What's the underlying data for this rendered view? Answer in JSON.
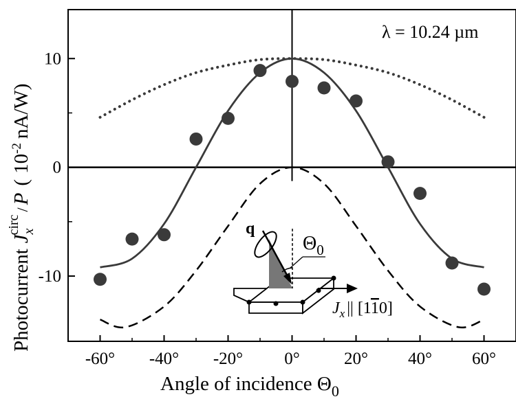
{
  "chart_data": {
    "type": "line",
    "annotation": "λ = 10.24 µm",
    "xlabel": "Angle of incidence Θ0",
    "ylabel": "Photocurrent J_x^circ / P ( 10^-2 nA/W)",
    "ylabel_parts": {
      "prefix": "Photocurrent",
      "J": "J",
      "sub": "x",
      "sup": "circ",
      "over": "/",
      "P": "P",
      "open": "(",
      "unit_base": "10",
      "unit_exp": "-2",
      "unit_rest": "nA/W)"
    },
    "xlabel_parts": {
      "text": "Angle of incidence Θ",
      "sub": "0"
    },
    "xlim": [
      -70,
      70
    ],
    "ylim": [
      -16,
      14.5
    ],
    "x_ticks": [
      -60,
      -40,
      -20,
      0,
      20,
      40,
      60
    ],
    "x_tick_labels": [
      "-60°",
      "-40°",
      "-20°",
      "0°",
      "20°",
      "40°",
      "60°"
    ],
    "y_ticks": [
      -10,
      0,
      10
    ],
    "y_tick_labels": [
      "-10",
      "0",
      "10"
    ],
    "grid": false,
    "scatter": {
      "x": [
        -60,
        -50,
        -40,
        -30,
        -20,
        -10,
        0,
        10,
        20,
        30,
        40,
        50,
        60
      ],
      "y": [
        -10.3,
        -6.6,
        -6.2,
        2.6,
        4.5,
        8.9,
        7.9,
        7.3,
        6.1,
        0.5,
        -2.4,
        -8.8,
        -11.2
      ]
    },
    "series": [
      {
        "style": "solid",
        "model": "cos-ref",
        "x": [
          -60,
          -50,
          -40,
          -30,
          -20,
          -10,
          0,
          10,
          20,
          30,
          40,
          50,
          60
        ],
        "y": [
          -9.2,
          -8.4,
          -5.2,
          0.0,
          5.2,
          8.7,
          10.0,
          8.7,
          5.2,
          0.0,
          -5.2,
          -8.4,
          -9.2
        ]
      },
      {
        "style": "dotted",
        "x": [
          -60,
          -50,
          -40,
          -30,
          -20,
          -10,
          0,
          10,
          20,
          30,
          40,
          50,
          60
        ],
        "y": [
          4.6,
          6.2,
          7.6,
          8.7,
          9.4,
          9.9,
          10.0,
          9.9,
          9.4,
          8.7,
          7.6,
          6.2,
          4.6
        ]
      },
      {
        "style": "dashed",
        "model": "sin-ref",
        "x": [
          -60,
          -52,
          -40,
          -30,
          -20,
          -10,
          0,
          10,
          20,
          30,
          40,
          52,
          60
        ],
        "y": [
          -14.0,
          -14.7,
          -12.8,
          -9.5,
          -5.4,
          -1.5,
          0.0,
          -1.5,
          -5.4,
          -9.5,
          -12.8,
          -14.7,
          -14.0
        ]
      }
    ],
    "inset": {
      "q_label": "q",
      "theta_label": "Θ",
      "theta_sub": "0",
      "current_label": "J",
      "current_sub": "x",
      "direction_label": "|| [1",
      "direction_bar_digit": "1",
      "direction_end": "0]"
    },
    "colors": {
      "axes": "#000000",
      "data": "#3a3a3a",
      "curve": "#3a3a3a",
      "wedge": "#777777"
    }
  }
}
